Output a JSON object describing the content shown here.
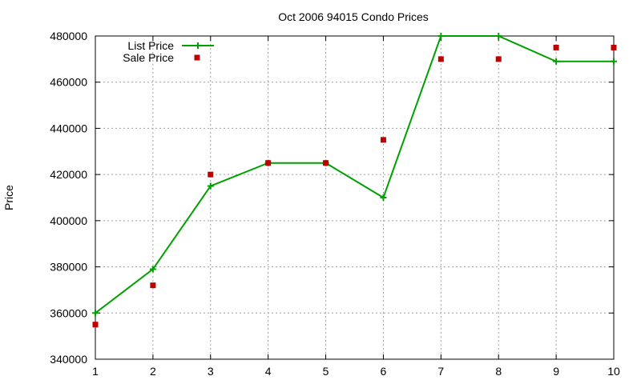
{
  "chart_data": {
    "type": "line",
    "title": "Oct 2006 94015 Condo Prices",
    "xlabel": "",
    "ylabel": "Price",
    "x": [
      1,
      2,
      3,
      4,
      5,
      6,
      7,
      8,
      9,
      10
    ],
    "xlim": [
      1,
      10
    ],
    "ylim": [
      340000,
      480000
    ],
    "x_ticks": [
      1,
      2,
      3,
      4,
      5,
      6,
      7,
      8,
      9,
      10
    ],
    "y_ticks": [
      340000,
      360000,
      380000,
      400000,
      420000,
      440000,
      460000,
      480000
    ],
    "grid": true,
    "legend_position": "top-left",
    "series": [
      {
        "name": "List Price",
        "type": "line",
        "color": "#00a000",
        "marker": "plus",
        "values": [
          360000,
          379000,
          415000,
          425000,
          425000,
          410000,
          480000,
          480000,
          469000,
          469000
        ]
      },
      {
        "name": "Sale Price",
        "type": "scatter",
        "color": "#c00000",
        "marker": "square",
        "values": [
          355000,
          372000,
          420000,
          425000,
          425000,
          435000,
          470000,
          470000,
          475000,
          475000
        ]
      }
    ]
  }
}
